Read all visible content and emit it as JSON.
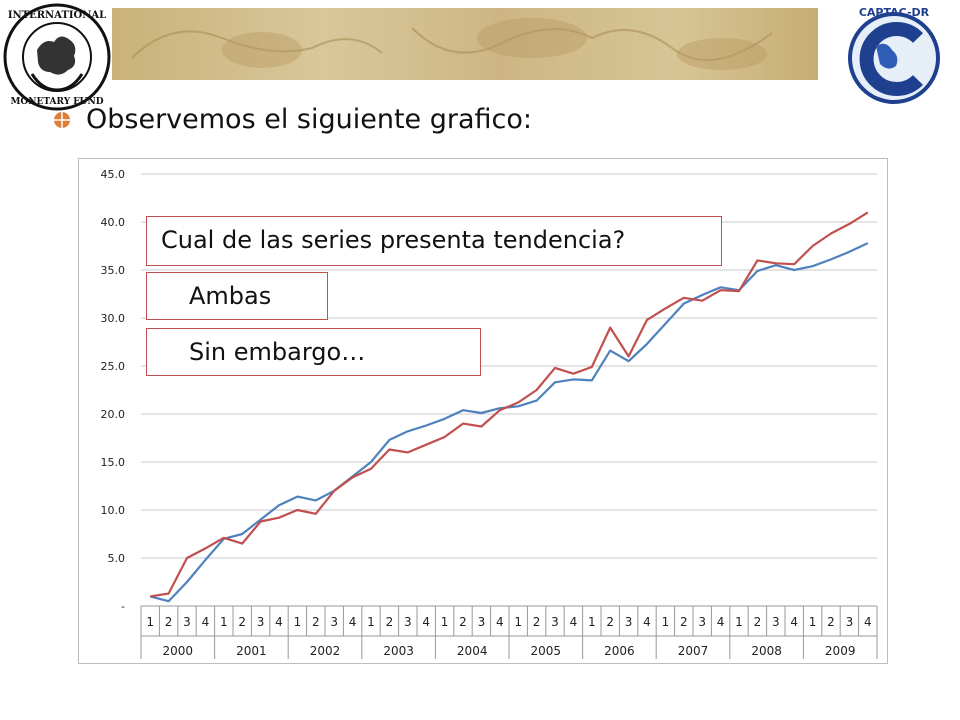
{
  "slide": {
    "heading": "Observemos el siguiente grafico:",
    "callouts": {
      "question": "Cual de las series presenta tendencia?",
      "answer": "Ambas",
      "followup": "Sin embargo…"
    },
    "logos": {
      "left": "imf-logo",
      "right": "captac-dr-logo"
    },
    "colors": {
      "accent": "#c0504d",
      "series_blue": "#4f81bd",
      "series_red": "#c0504d"
    }
  },
  "chart_data": {
    "type": "line",
    "y_tick_labels": [
      "-",
      "5.0",
      "10.0",
      "15.0",
      "20.0",
      "25.0",
      "30.0",
      "35.0",
      "40.0",
      "45.0"
    ],
    "ylim": [
      0,
      45
    ],
    "grid": true,
    "quarters": [
      "1",
      "2",
      "3",
      "4"
    ],
    "years": [
      "2000",
      "2001",
      "2002",
      "2003",
      "2004",
      "2005",
      "2006",
      "2007",
      "2008",
      "2009"
    ],
    "series": [
      {
        "color": "#4f81bd",
        "values": [
          1.0,
          0.5,
          2.5,
          4.8,
          7.0,
          7.5,
          9.0,
          10.5,
          11.4,
          11.0,
          12.0,
          13.5,
          15.0,
          17.3,
          18.2,
          18.8,
          19.5,
          20.4,
          20.1,
          20.6,
          20.8,
          21.4,
          23.3,
          23.6,
          23.5,
          26.6,
          25.5,
          27.3,
          29.4,
          31.5,
          32.4,
          33.2,
          32.9,
          34.9,
          35.5,
          35.0,
          35.4,
          36.1,
          36.9,
          37.8
        ]
      },
      {
        "color": "#c0504d",
        "values": [
          1.0,
          1.3,
          5.0,
          6.0,
          7.1,
          6.5,
          8.8,
          9.2,
          10.0,
          9.6,
          12.0,
          13.4,
          14.3,
          16.3,
          16.0,
          16.8,
          17.6,
          19.0,
          18.7,
          20.4,
          21.2,
          22.5,
          24.8,
          24.2,
          24.9,
          29.0,
          26.0,
          29.8,
          31.0,
          32.1,
          31.8,
          32.9,
          32.8,
          36.0,
          35.7,
          35.6,
          37.5,
          38.8,
          39.8,
          41.0
        ]
      }
    ]
  }
}
